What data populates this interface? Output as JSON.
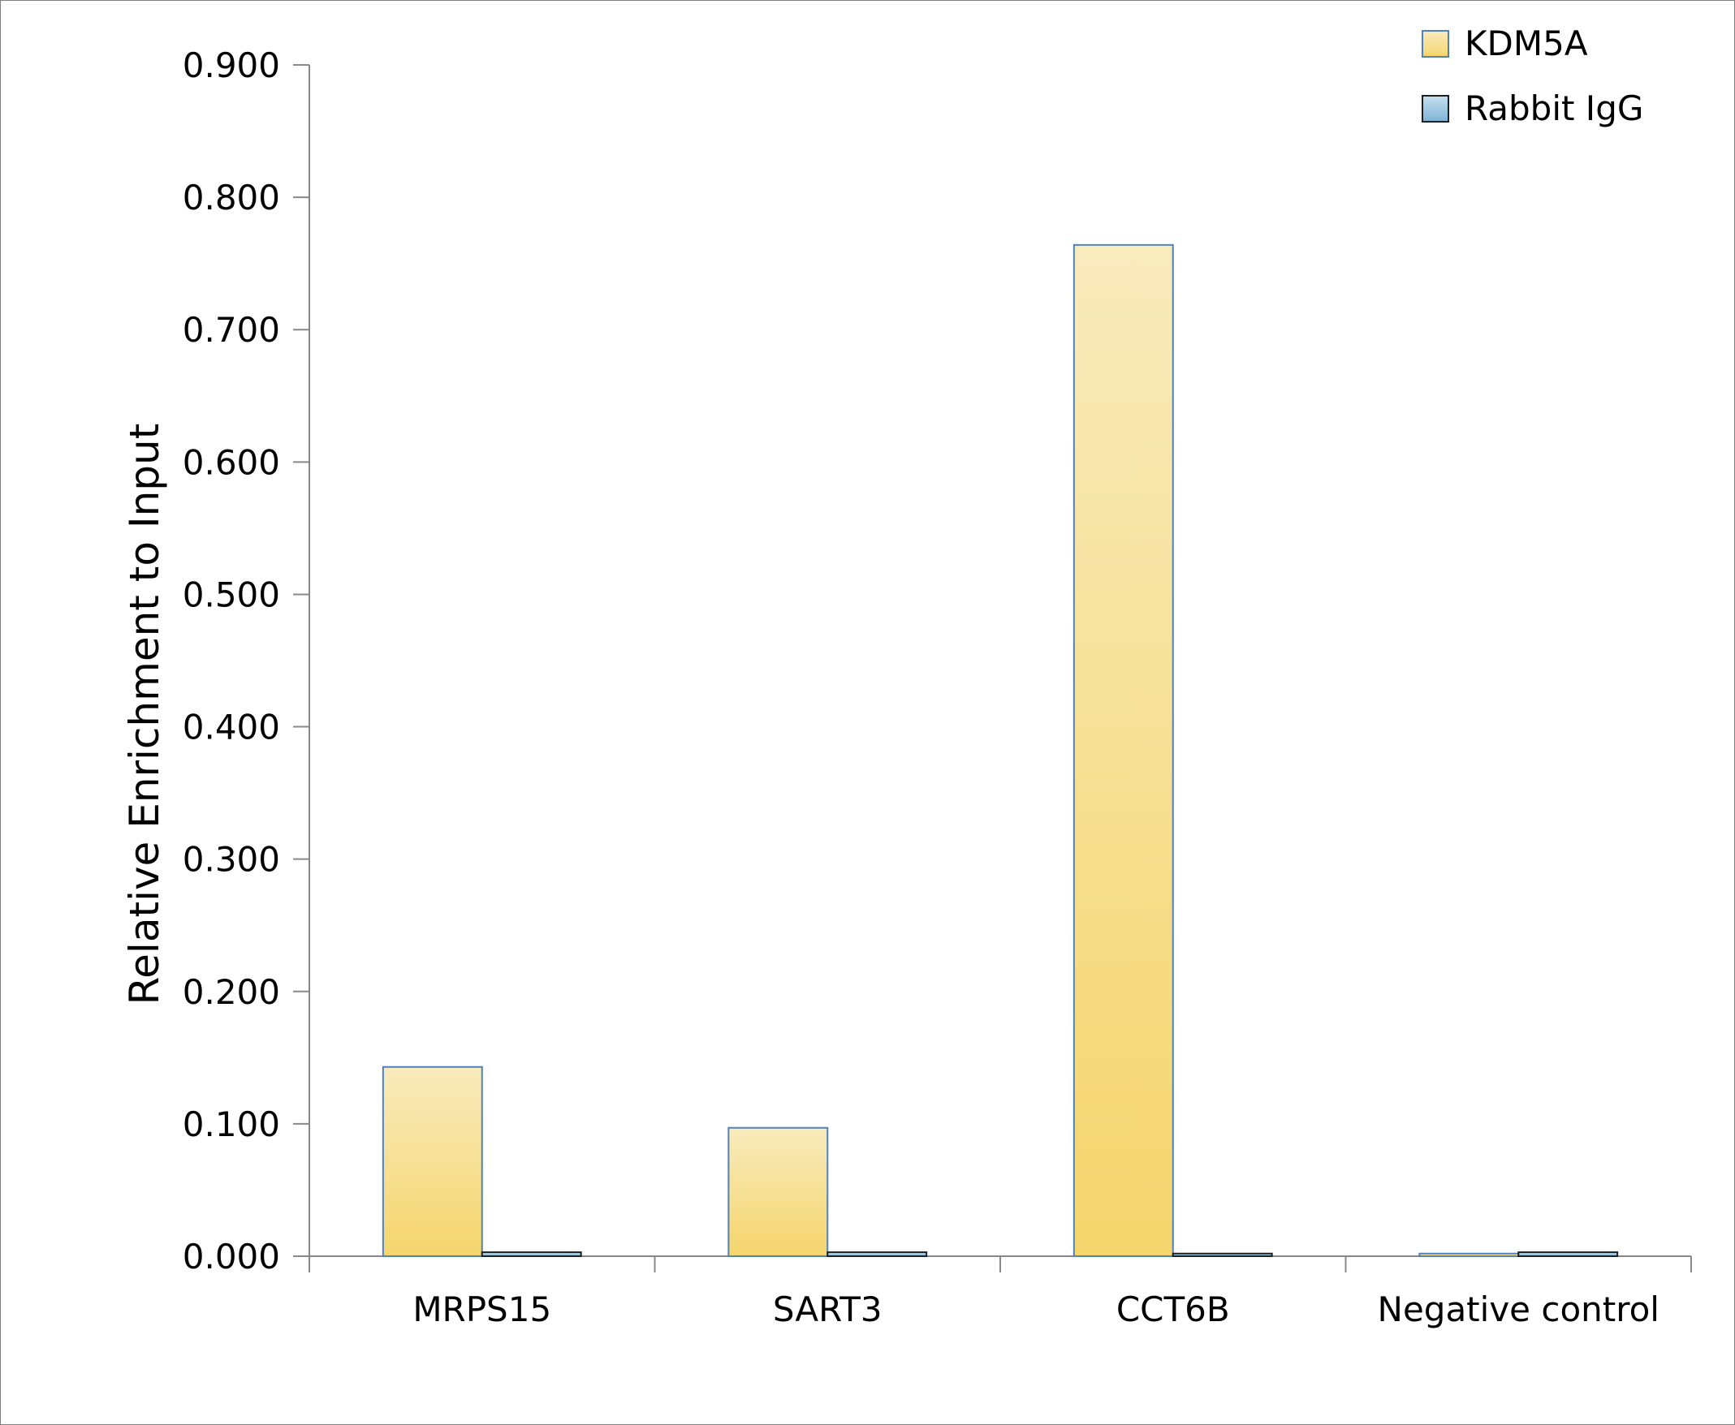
{
  "chart_data": {
    "type": "bar",
    "title": "",
    "xlabel": "",
    "ylabel": "Relative Enrichment to Input",
    "categories": [
      "MRPS15",
      "SART3",
      "CCT6B",
      "Negative control"
    ],
    "series": [
      {
        "name": "KDM5A",
        "values": [
          0.143,
          0.097,
          0.764,
          0.002
        ]
      },
      {
        "name": "Rabbit IgG",
        "values": [
          0.003,
          0.003,
          0.002,
          0.003
        ]
      }
    ],
    "ylim": [
      0,
      0.9
    ],
    "yticks": [
      "0.000",
      "0.100",
      "0.200",
      "0.300",
      "0.400",
      "0.500",
      "0.600",
      "0.700",
      "0.800",
      "0.900"
    ],
    "grid": false,
    "legend_position": "top-right",
    "colors": {
      "KDM5A_light": "#f8ebbd",
      "KDM5A_dark": "#f5d56c",
      "KDM5A_stroke": "#4f81bd",
      "IgG_light": "#c6e0ef",
      "IgG_dark": "#7fb3d5",
      "IgG_stroke": "#1f1f1f",
      "axis": "#888888"
    }
  }
}
